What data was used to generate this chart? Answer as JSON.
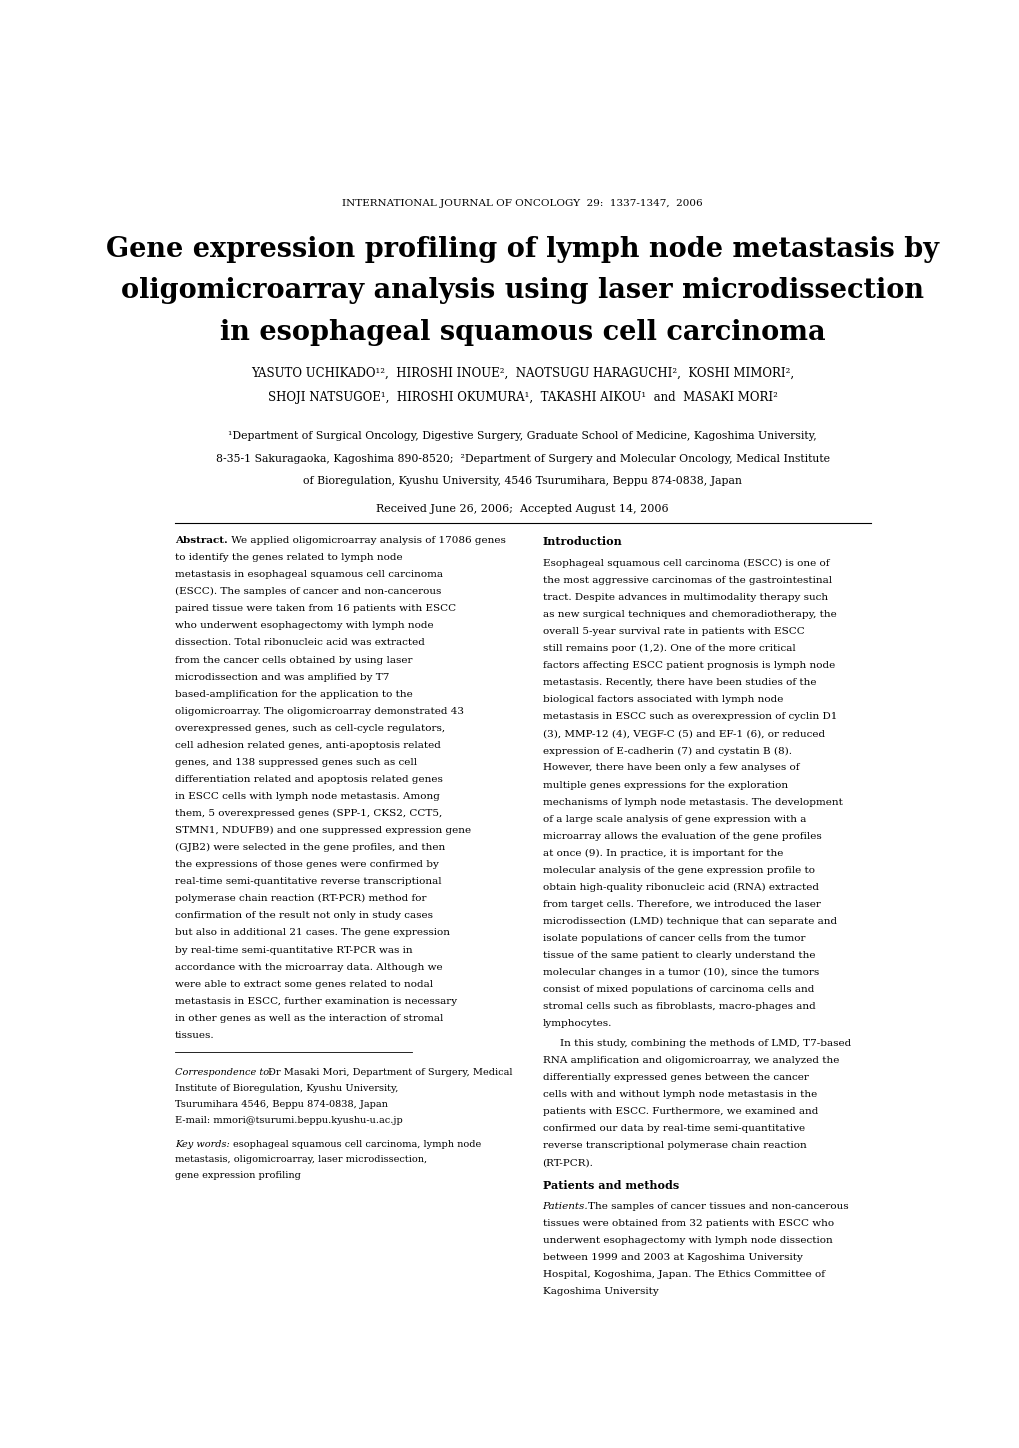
{
  "journal_header": "INTERNATIONAL JOURNAL OF ONCOLOGY  29:  1337-1347,  2006",
  "title_line1": "Gene expression profiling of lymph node metastasis by",
  "title_line2": "oligomicroarray analysis using laser microdissection",
  "title_line3": "in esophageal squamous cell carcinoma",
  "authors_line1": "YASUTO UCHIKADO¹²,  HIROSHI INOUE²,  NAOTSUGU HARAGUCHI²,  KOSHI MIMORI²,",
  "authors_line2": "SHOJI NATSUGOE¹,  HIROSHI OKUMURA¹,  TAKASHI AIKOU¹  and  MASAKI MORI²",
  "affiliation1": "¹Department of Surgical Oncology, Digestive Surgery, Graduate School of Medicine, Kagoshima University,",
  "affiliation2": "8-35-1 Sakuragaoka, Kagoshima 890-8520;  ²Department of Surgery and Molecular Oncology, Medical Institute",
  "affiliation3": "of Bioregulation, Kyushu University, 4546 Tsurumihara, Beppu 874-0838, Japan",
  "received": "Received June 26, 2006;  Accepted August 14, 2006",
  "abstract_body": "We applied oligomicroarray analysis of 17086 genes to identify the genes related to lymph node metastasis in esophageal squamous cell carcinoma (ESCC). The samples of cancer and non-cancerous paired tissue were taken from 16 patients with ESCC who underwent esophagectomy with lymph node dissection. Total ribonucleic acid was extracted from the cancer cells obtained by using laser microdissection and was amplified by T7 based-amplification for the application to the oligomicroarray. The oligomicroarray demonstrated 43 overexpressed genes, such as cell-cycle regulators, cell adhesion related genes, anti-apoptosis related genes, and 138 suppressed genes such as cell differentiation related and apoptosis related genes in ESCC cells with lymph node metastasis. Among them, 5 overexpressed genes (SPP-1, CKS2, CCT5, STMN1, NDUFB9) and one suppressed expression gene (GJB2) were selected in the gene profiles, and then the expressions of those genes were confirmed by real-time semi-quantitative reverse transcriptional polymerase chain reaction (RT-PCR) method for confirmation of the result not only in study cases but also in additional 21 cases. The gene expression by real-time semi-quantitative RT-PCR was in accordance with the microarray data. Although we were able to extract some genes related to nodal metastasis in ESCC, further examination is necessary in other genes as well as the interaction of stromal tissues.",
  "correspondence_body": "Dr Masaki Mori, Department of Surgery, Medical Institute of Bioregulation, Kyushu University, Tsurumihara 4546, Beppu 874-0838, Japan",
  "email": "E-mail: mmori@tsurumi.beppu.kyushu-u.ac.jp",
  "keywords_body": "esophageal squamous cell carcinoma, lymph node metastasis, oligomicroarray, laser microdissection, gene expression profiling",
  "intro_body": "Esophageal squamous cell carcinoma (ESCC) is one of the most aggressive carcinomas of the gastrointestinal tract. Despite advances in multimodality therapy such as new surgical techniques and chemoradiotherapy, the overall 5-year survival rate in patients with ESCC still remains poor (1,2). One of the more critical factors affecting ESCC patient prognosis is lymph node metastasis. Recently, there have been studies of the biological factors associated with lymph node metastasis in ESCC such as overexpression of cyclin D1 (3), MMP-12 (4), VEGF-C (5) and EF-1 (6), or reduced expression of E-cadherin (7) and cystatin B (8). However, there have been only a few analyses of multiple genes expressions for the exploration mechanisms of lymph node metastasis. The development of a large scale analysis of gene expression with a microarray allows the evaluation of the gene profiles at once (9). In practice, it is important for the molecular analysis of the gene expression profile to obtain high-quality ribonucleic acid (RNA) extracted from target cells. Therefore, we introduced the laser microdissection (LMD) technique that can separate and isolate populations of cancer cells from the tumor tissue of the same patient to clearly understand the molecular changes in a tumor (10), since the tumors consist of mixed populations of carcinoma cells and stromal cells such as fibroblasts, macro-phages and lymphocytes.",
  "intro_body2": "In this study, combining the methods of LMD, T7-based RNA amplification and oligomicroarray, we analyzed the differentially expressed genes between the cancer cells with and without lymph node metastasis in the patients with ESCC. Furthermore, we examined and confirmed our data by real-time semi-quantitative reverse transcriptional polymerase chain reaction (RT-PCR).",
  "patients_body": "The samples of cancer tissues and non-cancerous tissues were obtained from 32 patients with ESCC who underwent esophagectomy with lymph node dissection between 1999 and 2003 at Kagoshima University Hospital, Kogoshima, Japan. The Ethics Committee of Kagoshima University"
}
